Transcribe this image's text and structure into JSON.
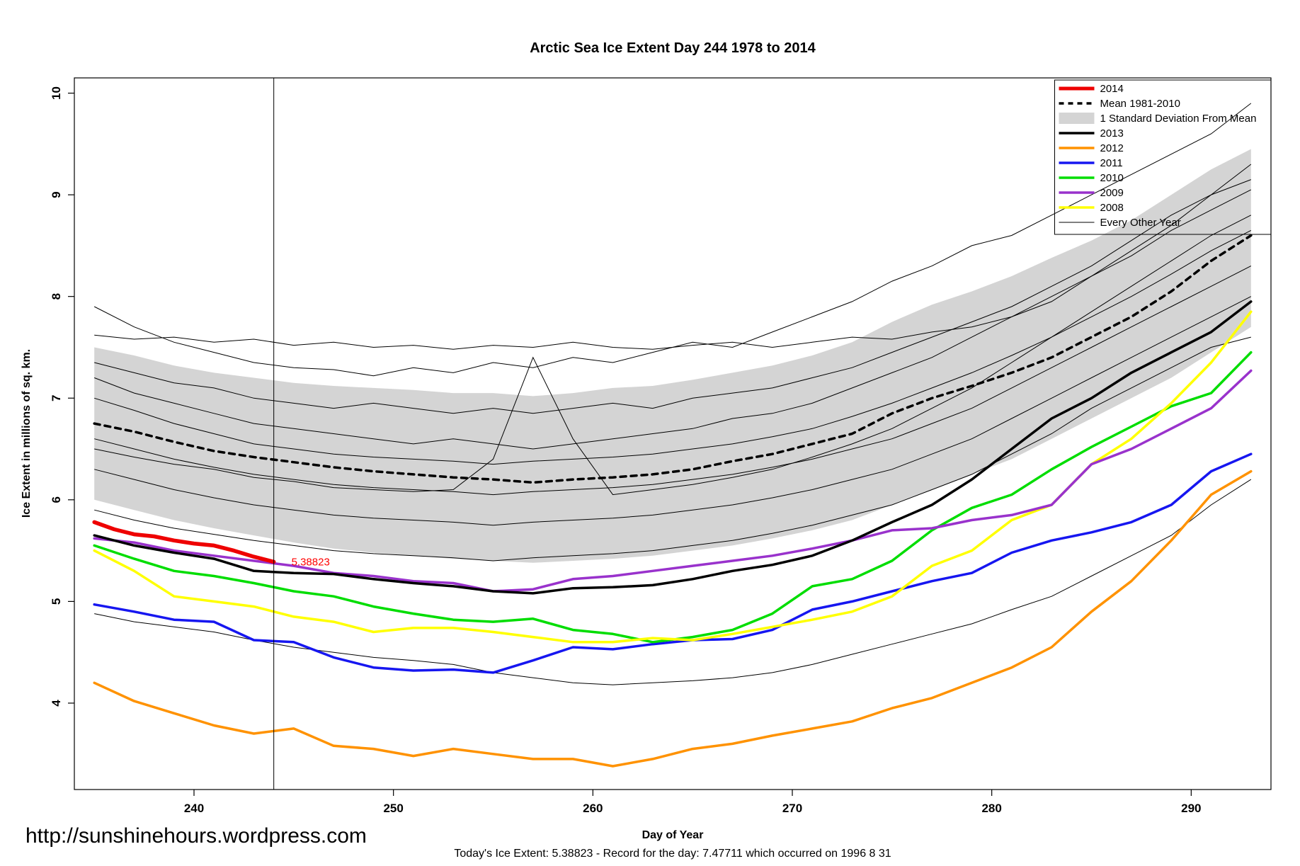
{
  "title": "Arctic Sea Ice Extent Day 244 1978 to 2014",
  "footer": {
    "url": "http://sunshinehours.wordpress.com",
    "xlabel": "Day of Year",
    "status": "Today's Ice Extent: 5.38823  - Record for the day: 7.47711 which occurred on 1996 8 31"
  },
  "legend": {
    "entries": [
      {
        "label": "2014",
        "type": "line",
        "color": "#ee0000",
        "width": 5
      },
      {
        "label": "Mean 1981-2010",
        "type": "dash",
        "color": "#000000",
        "width": 3.5
      },
      {
        "label": "1 Standard Deviation From Mean",
        "type": "box",
        "color": "#d4d4d4"
      },
      {
        "label": "2013",
        "type": "line",
        "color": "#000000",
        "width": 3.5
      },
      {
        "label": "2012",
        "type": "line",
        "color": "#ff9200",
        "width": 3.5
      },
      {
        "label": "2011",
        "type": "line",
        "color": "#1616f0",
        "width": 3.5
      },
      {
        "label": "2010",
        "type": "line",
        "color": "#00dd00",
        "width": 3.5
      },
      {
        "label": "2009",
        "type": "line",
        "color": "#9932cc",
        "width": 3.5
      },
      {
        "label": "2008",
        "type": "line",
        "color": "#ffff00",
        "width": 3.5
      },
      {
        "label": "Every Other Year",
        "type": "line",
        "color": "#000000",
        "width": 1
      }
    ]
  },
  "chart_data": {
    "type": "line",
    "title": "Arctic Sea Ice Extent Day 244 1978 to 2014",
    "xlabel": "Day of Year",
    "ylabel": "Ice Extent in millions of sq. km.",
    "x_domain": [
      234,
      294
    ],
    "y_domain": [
      3.15,
      10.15
    ],
    "x_ticks": [
      240,
      250,
      260,
      270,
      280,
      290
    ],
    "y_ticks": [
      4,
      5,
      6,
      7,
      8,
      9,
      10
    ],
    "grid": false,
    "legend_position": "top-right",
    "marker_day": 244,
    "annotation": {
      "text": "5.38823",
      "day": 244.6,
      "value": 5.39,
      "color": "#ff0000"
    },
    "x": [
      235,
      237,
      239,
      241,
      243,
      245,
      247,
      249,
      251,
      253,
      255,
      257,
      259,
      261,
      263,
      265,
      267,
      269,
      271,
      273,
      275,
      277,
      279,
      281,
      283,
      285,
      287,
      289,
      291,
      293
    ],
    "band": {
      "name": "1 Standard Deviation From Mean",
      "color": "#d4d4d4",
      "upper": [
        7.5,
        7.42,
        7.32,
        7.25,
        7.2,
        7.15,
        7.12,
        7.1,
        7.08,
        7.05,
        7.05,
        7.02,
        7.05,
        7.1,
        7.12,
        7.18,
        7.25,
        7.32,
        7.42,
        7.55,
        7.75,
        7.92,
        8.05,
        8.2,
        8.38,
        8.55,
        8.75,
        9.0,
        9.25,
        9.45
      ],
      "lower": [
        6.0,
        5.9,
        5.8,
        5.72,
        5.65,
        5.58,
        5.52,
        5.48,
        5.45,
        5.42,
        5.4,
        5.38,
        5.4,
        5.42,
        5.45,
        5.5,
        5.55,
        5.62,
        5.7,
        5.8,
        5.95,
        6.1,
        6.25,
        6.4,
        6.6,
        6.8,
        7.0,
        7.2,
        7.45,
        7.7
      ]
    },
    "series": [
      {
        "name": "Mean 1981-2010",
        "color": "#000000",
        "width": 3.5,
        "dash": "8,7",
        "values": [
          6.75,
          6.67,
          6.57,
          6.48,
          6.42,
          6.37,
          6.32,
          6.28,
          6.25,
          6.22,
          6.2,
          6.17,
          6.2,
          6.22,
          6.25,
          6.3,
          6.38,
          6.45,
          6.55,
          6.65,
          6.85,
          7.0,
          7.12,
          7.25,
          7.4,
          7.6,
          7.8,
          8.05,
          8.35,
          8.6
        ]
      },
      {
        "name": "2012",
        "color": "#ff9200",
        "width": 3.5,
        "values": [
          4.2,
          4.02,
          3.9,
          3.78,
          3.7,
          3.75,
          3.58,
          3.55,
          3.48,
          3.55,
          3.5,
          3.45,
          3.45,
          3.38,
          3.45,
          3.55,
          3.6,
          3.68,
          3.75,
          3.82,
          3.95,
          4.05,
          4.2,
          4.35,
          4.55,
          4.9,
          5.2,
          5.6,
          6.05,
          6.28
        ]
      },
      {
        "name": "2011",
        "color": "#1616f0",
        "width": 3.5,
        "values": [
          4.97,
          4.9,
          4.82,
          4.8,
          4.62,
          4.6,
          4.45,
          4.35,
          4.32,
          4.33,
          4.3,
          4.42,
          4.55,
          4.53,
          4.58,
          4.62,
          4.63,
          4.72,
          4.92,
          5.0,
          5.1,
          5.2,
          5.28,
          5.48,
          5.6,
          5.68,
          5.78,
          5.95,
          6.28,
          6.45
        ]
      },
      {
        "name": "2010",
        "color": "#00dd00",
        "width": 3.5,
        "values": [
          5.55,
          5.42,
          5.3,
          5.25,
          5.18,
          5.1,
          5.05,
          4.95,
          4.88,
          4.82,
          4.8,
          4.83,
          4.72,
          4.68,
          4.6,
          4.65,
          4.72,
          4.88,
          5.15,
          5.22,
          5.4,
          5.7,
          5.92,
          6.05,
          6.3,
          6.52,
          6.72,
          6.92,
          7.05,
          7.45
        ]
      },
      {
        "name": "2008",
        "color": "#ffff00",
        "width": 3.5,
        "values": [
          5.5,
          5.3,
          5.05,
          5.0,
          4.95,
          4.85,
          4.8,
          4.7,
          4.74,
          4.74,
          4.7,
          4.65,
          4.6,
          4.6,
          4.64,
          4.62,
          4.68,
          4.75,
          4.82,
          4.9,
          5.05,
          5.35,
          5.5,
          5.8,
          5.95,
          6.35,
          6.6,
          6.95,
          7.35,
          7.85
        ]
      },
      {
        "name": "2009",
        "color": "#9932cc",
        "width": 3.5,
        "values": [
          5.62,
          5.58,
          5.5,
          5.45,
          5.4,
          5.35,
          5.28,
          5.25,
          5.2,
          5.18,
          5.1,
          5.12,
          5.22,
          5.25,
          5.3,
          5.35,
          5.4,
          5.45,
          5.52,
          5.6,
          5.7,
          5.72,
          5.8,
          5.85,
          5.95,
          6.35,
          6.5,
          6.7,
          6.9,
          7.27
        ]
      },
      {
        "name": "2013",
        "color": "#000000",
        "width": 3.5,
        "values": [
          5.65,
          5.55,
          5.48,
          5.42,
          5.3,
          5.28,
          5.27,
          5.22,
          5.18,
          5.15,
          5.1,
          5.08,
          5.13,
          5.14,
          5.16,
          5.22,
          5.3,
          5.36,
          5.45,
          5.6,
          5.78,
          5.95,
          6.2,
          6.5,
          6.8,
          7.0,
          7.25,
          7.45,
          7.65,
          7.95
        ]
      },
      {
        "name": "2014",
        "color": "#ee0000",
        "width": 5.5,
        "x": [
          235,
          236,
          237,
          238,
          239,
          240,
          241,
          242,
          243,
          244
        ],
        "values": [
          5.78,
          5.71,
          5.66,
          5.64,
          5.6,
          5.57,
          5.55,
          5.5,
          5.44,
          5.39
        ]
      }
    ],
    "other_years": {
      "name": "Every Other Year",
      "color": "#000000",
      "width": 1,
      "lines": [
        [
          7.9,
          7.7,
          7.55,
          7.45,
          7.35,
          7.3,
          7.28,
          7.22,
          7.3,
          7.25,
          7.35,
          7.3,
          7.4,
          7.35,
          7.45,
          7.55,
          7.5,
          7.65,
          7.8,
          7.95,
          8.15,
          8.3,
          8.5,
          8.6,
          8.8,
          9.0,
          9.2,
          9.4,
          9.6,
          9.9
        ],
        [
          7.62,
          7.58,
          7.6,
          7.55,
          7.58,
          7.52,
          7.55,
          7.5,
          7.52,
          7.48,
          7.52,
          7.5,
          7.55,
          7.5,
          7.48,
          7.52,
          7.55,
          7.5,
          7.55,
          7.6,
          7.58,
          7.65,
          7.7,
          7.8,
          7.95,
          8.2,
          8.45,
          8.7,
          9.0,
          9.3
        ],
        [
          7.35,
          7.25,
          7.15,
          7.1,
          7.0,
          6.95,
          6.9,
          6.95,
          6.9,
          6.85,
          6.9,
          6.85,
          6.9,
          6.95,
          6.9,
          7.0,
          7.05,
          7.1,
          7.2,
          7.3,
          7.45,
          7.6,
          7.75,
          7.9,
          8.1,
          8.3,
          8.55,
          8.8,
          9.0,
          9.15
        ],
        [
          7.2,
          7.05,
          6.95,
          6.85,
          6.75,
          6.7,
          6.65,
          6.6,
          6.55,
          6.6,
          6.55,
          6.5,
          6.55,
          6.6,
          6.65,
          6.7,
          6.8,
          6.85,
          6.95,
          7.1,
          7.25,
          7.4,
          7.6,
          7.8,
          8.0,
          8.2,
          8.4,
          8.65,
          8.85,
          9.05
        ],
        [
          7.0,
          6.88,
          6.75,
          6.65,
          6.55,
          6.5,
          6.45,
          6.42,
          6.4,
          6.38,
          6.35,
          6.38,
          6.4,
          6.42,
          6.45,
          6.5,
          6.55,
          6.62,
          6.7,
          6.82,
          6.95,
          7.1,
          7.25,
          7.42,
          7.6,
          7.8,
          8.0,
          8.22,
          8.45,
          8.65
        ],
        [
          6.6,
          6.5,
          6.4,
          6.32,
          6.25,
          6.2,
          6.15,
          6.12,
          6.1,
          6.08,
          6.05,
          6.08,
          6.1,
          6.12,
          6.15,
          6.2,
          6.25,
          6.32,
          6.4,
          6.5,
          6.6,
          6.75,
          6.9,
          7.1,
          7.3,
          7.5,
          7.7,
          7.9,
          8.1,
          8.3
        ],
        [
          6.3,
          6.2,
          6.1,
          6.02,
          5.95,
          5.9,
          5.85,
          5.82,
          5.8,
          5.78,
          5.75,
          5.78,
          5.8,
          5.82,
          5.85,
          5.9,
          5.95,
          6.02,
          6.1,
          6.2,
          6.3,
          6.45,
          6.6,
          6.8,
          7.0,
          7.2,
          7.4,
          7.6,
          7.8,
          8.0
        ],
        [
          6.5,
          6.42,
          6.35,
          6.3,
          6.22,
          6.18,
          6.12,
          6.1,
          6.08,
          6.1,
          6.4,
          7.4,
          6.6,
          6.05,
          6.1,
          6.15,
          6.22,
          6.3,
          6.42,
          6.55,
          6.7,
          6.9,
          7.1,
          7.35,
          7.6,
          7.85,
          8.1,
          8.35,
          8.6,
          8.8
        ],
        [
          5.9,
          5.8,
          5.72,
          5.66,
          5.6,
          5.55,
          5.5,
          5.47,
          5.45,
          5.43,
          5.4,
          5.43,
          5.45,
          5.47,
          5.5,
          5.55,
          5.6,
          5.67,
          5.75,
          5.85,
          5.95,
          6.1,
          6.25,
          6.45,
          6.65,
          6.9,
          7.1,
          7.3,
          7.5,
          7.6
        ],
        [
          4.88,
          4.8,
          4.75,
          4.7,
          4.62,
          4.55,
          4.5,
          4.45,
          4.42,
          4.38,
          4.3,
          4.25,
          4.2,
          4.18,
          4.2,
          4.22,
          4.25,
          4.3,
          4.38,
          4.48,
          4.58,
          4.68,
          4.78,
          4.92,
          5.05,
          5.25,
          5.45,
          5.65,
          5.95,
          6.2
        ]
      ]
    }
  }
}
